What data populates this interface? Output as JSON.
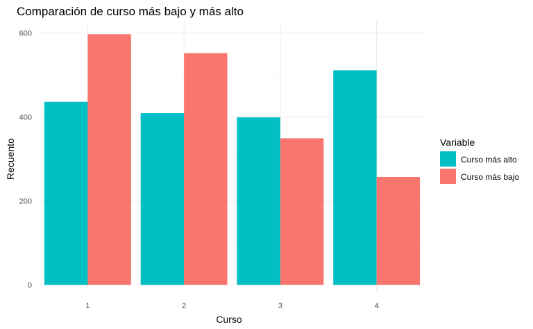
{
  "chart_data": {
    "type": "bar",
    "title": "Comparación de curso más bajo y más alto",
    "xlabel": "Curso",
    "ylabel": "Recuento",
    "categories": [
      "1",
      "2",
      "3",
      "4"
    ],
    "series": [
      {
        "name": "Curso más alto",
        "color": "#00BFC4",
        "values": [
          436,
          409,
          399,
          511
        ]
      },
      {
        "name": "Curso más bajo",
        "color": "#F8766D",
        "values": [
          597,
          552,
          349,
          257
        ]
      }
    ],
    "ylim": [
      0,
      640
    ],
    "yticks": [
      0,
      200,
      400,
      600
    ],
    "grid": true,
    "legend": {
      "title": "Variable",
      "position": "right"
    }
  }
}
